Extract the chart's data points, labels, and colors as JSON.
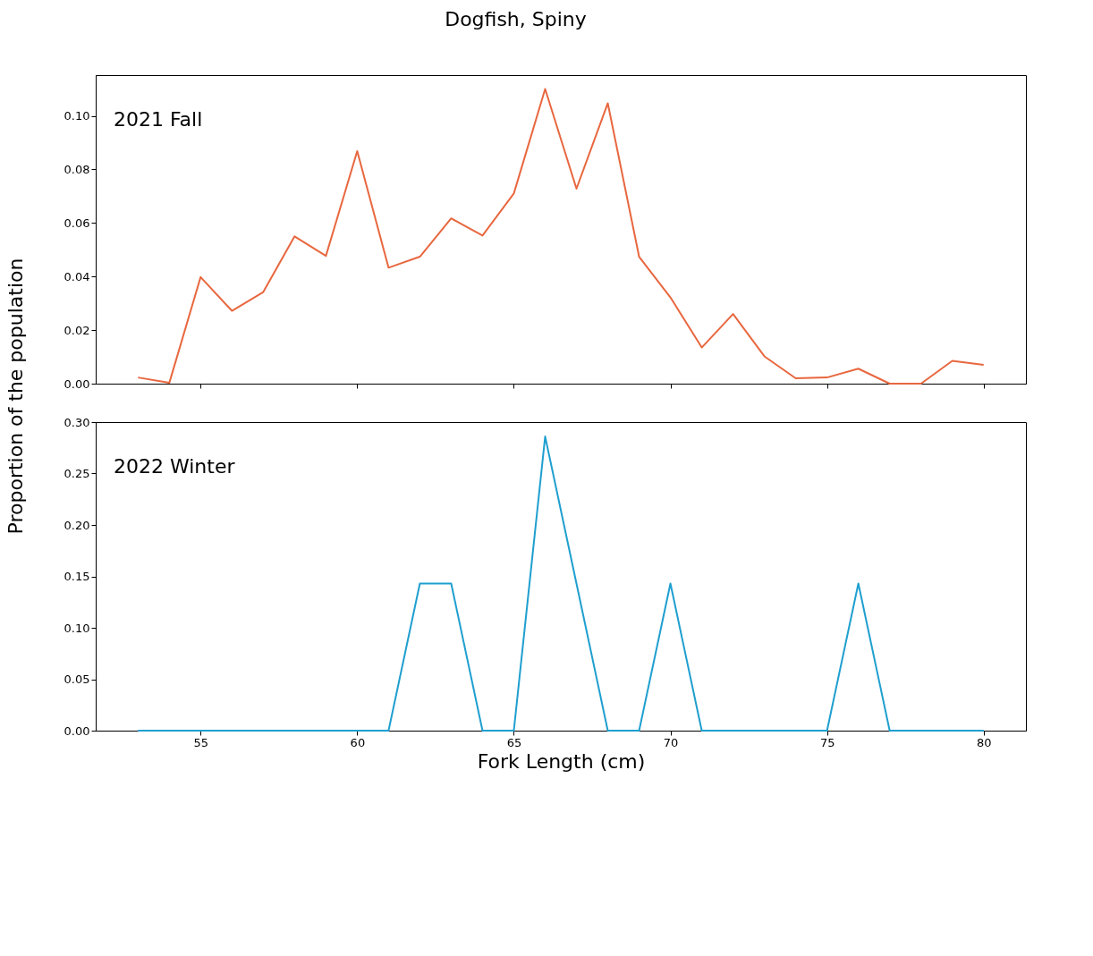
{
  "chart_data": [
    {
      "type": "line",
      "title": "Dogfish, Spiny",
      "ylabel": "Proportion of the population",
      "annotations": [
        "2021 Fall"
      ],
      "x": [
        53,
        54,
        55,
        56,
        57,
        58,
        59,
        60,
        61,
        62,
        63,
        64,
        65,
        66,
        67,
        68,
        69,
        70,
        71,
        72,
        73,
        74,
        75,
        76,
        77,
        78,
        79,
        80
      ],
      "series": [
        {
          "color": "#e8673f",
          "values": [
            0.0023,
            0.0003,
            0.0398,
            0.0272,
            0.0342,
            0.055,
            0.0477,
            0.0868,
            0.0433,
            0.0474,
            0.0617,
            0.0553,
            0.071,
            0.11,
            0.0728,
            0.1047,
            0.0474,
            0.0322,
            0.0135,
            0.026,
            0.0102,
            0.002,
            0.0023,
            0.0056,
            0.0,
            0.0,
            0.0085,
            0.007
          ]
        }
      ],
      "xlim": [
        51.65,
        81.35
      ],
      "xticks": [
        55,
        60,
        65,
        70,
        75,
        80
      ],
      "ylim": [
        0,
        0.1152
      ],
      "yticks": [
        {
          "value": 0,
          "label": "0.00"
        },
        {
          "value": 0.02,
          "label": "0.02"
        },
        {
          "value": 0.04,
          "label": "0.04"
        },
        {
          "value": 0.06,
          "label": "0.06"
        },
        {
          "value": 0.08,
          "label": "0.08"
        },
        {
          "value": 0.1,
          "label": "0.10"
        }
      ],
      "tick_labels": "y",
      "grid": false
    },
    {
      "type": "line",
      "xlabel": "Fork Length (cm)",
      "annotations": [
        "2022 Winter"
      ],
      "x": [
        53,
        54,
        55,
        56,
        57,
        58,
        59,
        60,
        61,
        62,
        63,
        64,
        65,
        66,
        67,
        68,
        69,
        70,
        71,
        72,
        73,
        74,
        75,
        76,
        77,
        78,
        79,
        80
      ],
      "series": [
        {
          "color": "#1f9fcf",
          "values": [
            0,
            0,
            0,
            0,
            0,
            0,
            0,
            0,
            0,
            0.143,
            0.143,
            0,
            0,
            0.286,
            0.143,
            0,
            0,
            0.143,
            0,
            0,
            0,
            0,
            0,
            0.143,
            0,
            0,
            0,
            0
          ]
        }
      ],
      "xlim": [
        51.65,
        81.35
      ],
      "xticks": [
        55,
        60,
        65,
        70,
        75,
        80
      ],
      "ylim": [
        0,
        0.3
      ],
      "yticks": [
        {
          "value": 0,
          "label": "0.00"
        },
        {
          "value": 0.05,
          "label": "0.05"
        },
        {
          "value": 0.1,
          "label": "0.10"
        },
        {
          "value": 0.15,
          "label": "0.15"
        },
        {
          "value": 0.2,
          "label": "0.20"
        },
        {
          "value": 0.25,
          "label": "0.25"
        },
        {
          "value": 0.3,
          "label": "0.30"
        }
      ],
      "grid": false
    }
  ]
}
